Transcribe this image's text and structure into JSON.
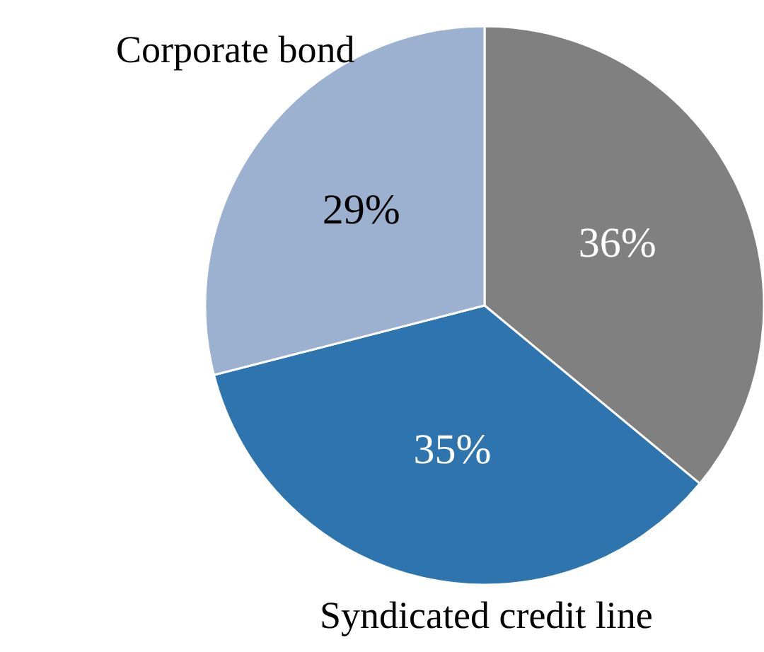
{
  "chart_data": {
    "type": "pie",
    "categories": [
      null,
      "Syndicated credit line",
      "Corporate bond"
    ],
    "values": [
      36,
      35,
      29
    ],
    "colors": [
      "#808080",
      "#2e75b0",
      "#9cb0cf"
    ],
    "value_labels": [
      "36%",
      "35%",
      "29%"
    ],
    "legend": false
  }
}
